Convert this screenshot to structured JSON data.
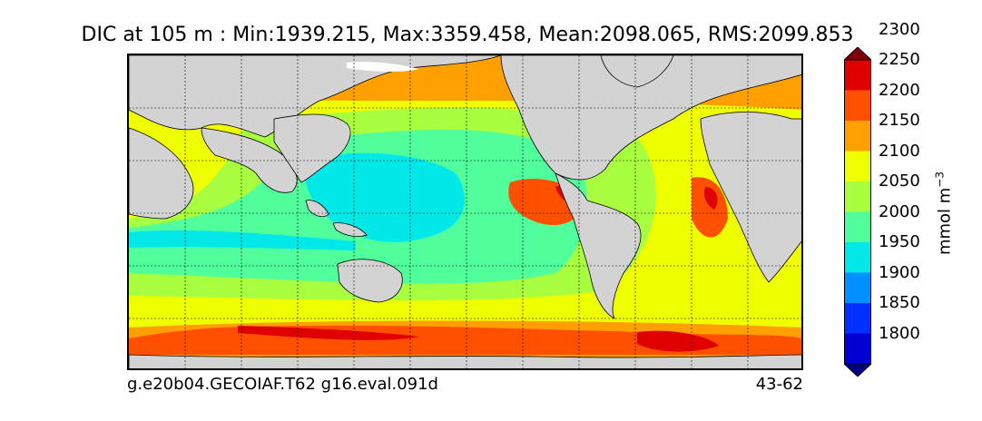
{
  "title": "DIC at 105 m : Min:1939.215, Max:3359.458, Mean:2098.065, RMS:2099.853",
  "footer": {
    "left": "g.e20b04.GECOIAF.T62 g16.eval.091d",
    "right": "43-62"
  },
  "colorbar": {
    "units_base": "mmol m",
    "units_exp": "−3",
    "labels": [
      "2300",
      "2250",
      "2200",
      "2150",
      "2100",
      "2050",
      "2000",
      "1950",
      "1900",
      "1850",
      "1800"
    ],
    "colors": [
      "#000080",
      "#0000d0",
      "#0030ff",
      "#0090ff",
      "#00e8e8",
      "#50ff9c",
      "#a8ff40",
      "#f0ff00",
      "#ffa000",
      "#ff5000",
      "#e00000",
      "#800000"
    ]
  },
  "colors": {
    "land": "#d3d3d3",
    "ice": "#ffffff",
    "frame": "#000000"
  }
}
